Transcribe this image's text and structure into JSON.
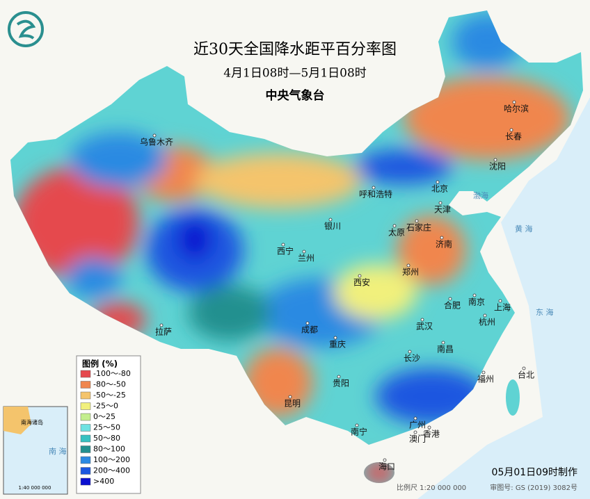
{
  "header": {
    "title": "近30天全国降水距平百分率图",
    "subtitle": "4月1日08时—5月1日08时",
    "agency": "中央气象台"
  },
  "legend": {
    "title": "图例 (%)",
    "items": [
      {
        "label": "-100～-80",
        "color": "#e5484d"
      },
      {
        "label": "-80～-50",
        "color": "#f0864e"
      },
      {
        "label": "-50～-25",
        "color": "#f4c46c"
      },
      {
        "label": "-25～0",
        "color": "#f1f07c"
      },
      {
        "label": "0～25",
        "color": "#c3ee8f"
      },
      {
        "label": "25～50",
        "color": "#6fe2e2"
      },
      {
        "label": "50～80",
        "color": "#37c1c1"
      },
      {
        "label": "80～100",
        "color": "#22908f"
      },
      {
        "label": "100～200",
        "color": "#2b8ae2"
      },
      {
        "label": "200～400",
        "color": "#1a56e0"
      },
      {
        "label": ">400",
        "color": "#0a0fd0"
      }
    ]
  },
  "cities": [
    "乌鲁木齐",
    "哈尔滨",
    "长春",
    "沈阳",
    "呼和浩特",
    "北京",
    "天津",
    "银川",
    "太原",
    "石家庄",
    "济南",
    "西宁",
    "兰州",
    "郑州",
    "西安",
    "合肥",
    "南京",
    "上海",
    "拉萨",
    "成都",
    "武汉",
    "杭州",
    "重庆",
    "南昌",
    "长沙",
    "福州",
    "台北",
    "贵阳",
    "昆明",
    "广州",
    "南宁",
    "澳门",
    "香港",
    "海口"
  ],
  "seas": [
    "渤海",
    "黄 海",
    "东 海",
    "南 海"
  ],
  "inset": {
    "title": "南海诸岛",
    "scale": "1:40 000 000"
  },
  "footer": {
    "made": "05月01日09时制作",
    "scale": "比例尺 1:20 000 000",
    "map_number": "审图号: GS (2019) 3082号"
  }
}
